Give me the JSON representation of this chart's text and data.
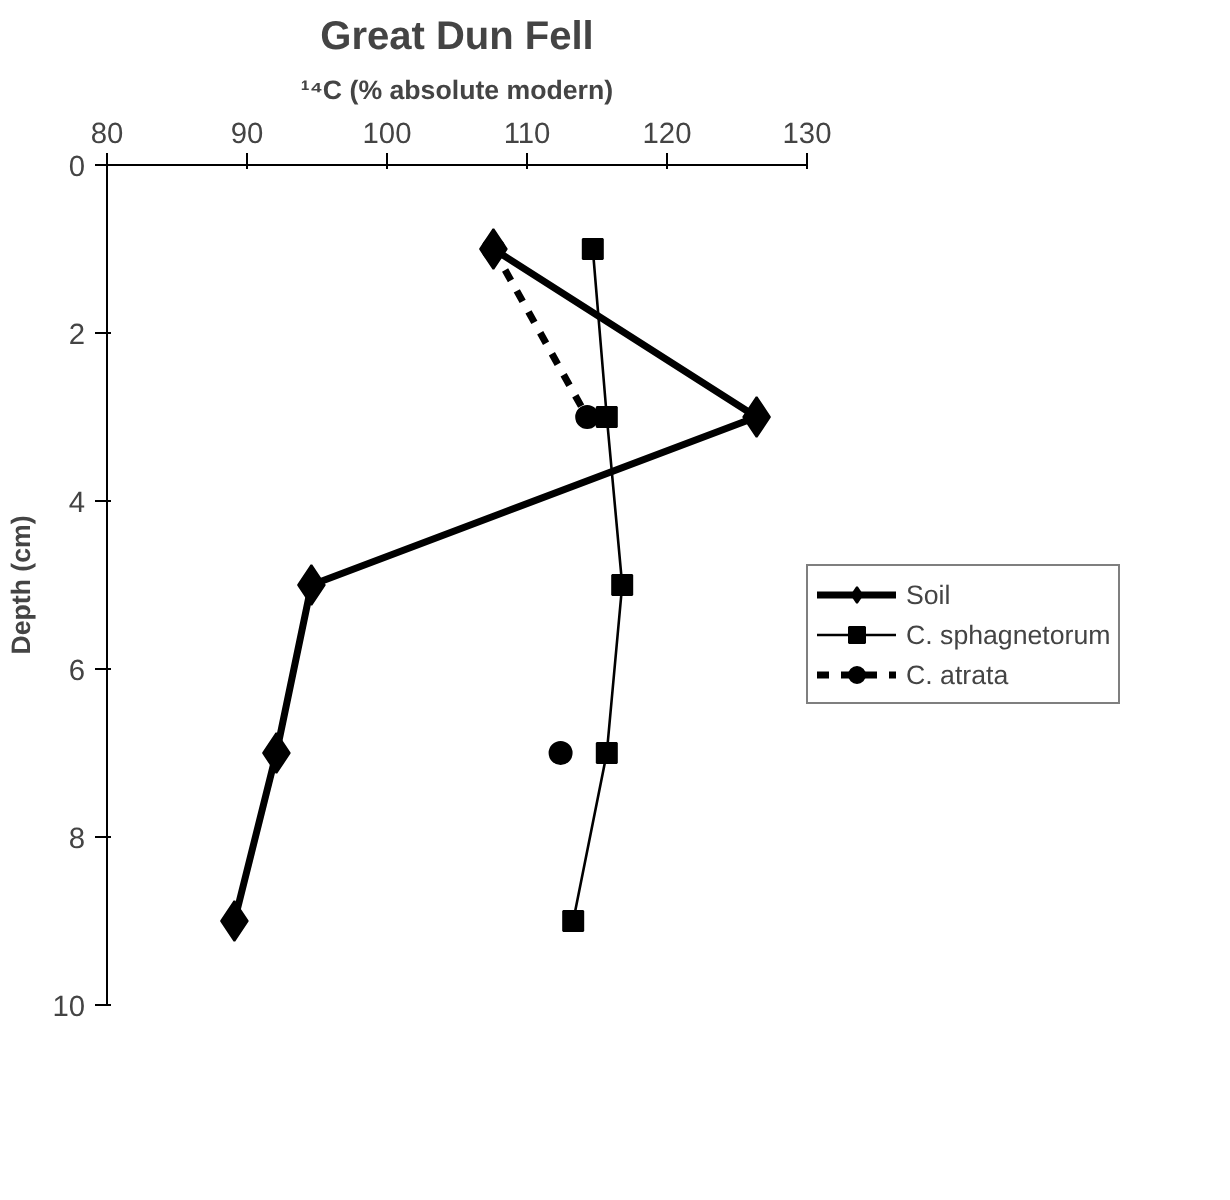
{
  "chart_data": {
    "type": "line",
    "title": "Great Dun Fell",
    "xlabel": "¹⁴C (% absolute modern)",
    "ylabel": "Depth (cm)",
    "xlim": [
      80,
      130
    ],
    "xticks": [
      80,
      90,
      100,
      110,
      120,
      130
    ],
    "ylim": [
      10,
      0
    ],
    "yticks": [
      0,
      2,
      4,
      6,
      8,
      10
    ],
    "grid": false,
    "legend": "right",
    "series": [
      {
        "name": "Soil",
        "color": "#000000",
        "marker": "diamond",
        "line_style": "solid",
        "x": [
          107.6,
          126.4,
          94.6,
          92.1,
          89.1
        ],
        "values": [
          1,
          3,
          5,
          7,
          9
        ]
      },
      {
        "name": "C. sphagnetorum",
        "color": "#000000",
        "marker": "square",
        "line_style": "solid",
        "x": [
          114.7,
          115.7,
          116.8,
          115.7,
          113.3
        ],
        "values": [
          1,
          3,
          5,
          7,
          9
        ]
      },
      {
        "name": "C. atrata",
        "color": "#000000",
        "marker": "circle",
        "line_style": "dashed",
        "x": [
          107.6,
          114.3,
          null,
          112.4
        ],
        "values": [
          1,
          3,
          null,
          7
        ]
      }
    ]
  }
}
